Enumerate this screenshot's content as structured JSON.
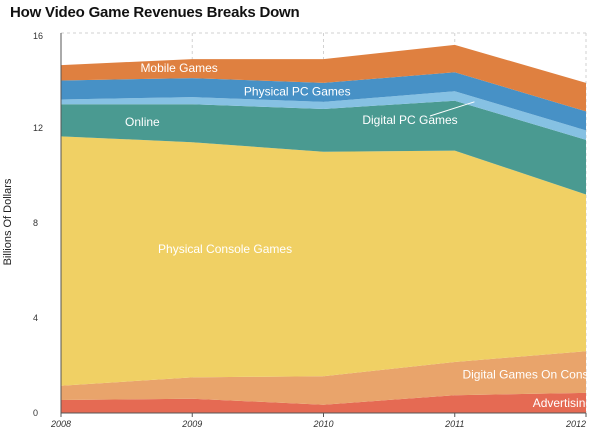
{
  "chart_data": {
    "type": "area",
    "stacked": true,
    "title": "How Video Game Revenues Breaks Down",
    "xlabel": "",
    "ylabel": "Billions Of Dollars",
    "x": [
      "2008",
      "2009",
      "2010",
      "2011",
      "2012"
    ],
    "y_ticks": [
      "0",
      "4",
      "8",
      "12",
      "16"
    ],
    "ylim": [
      0,
      16
    ],
    "grid": "dashed vertical and horizontal",
    "series": [
      {
        "name": "Advertising",
        "values": [
          0.55,
          0.6,
          0.35,
          0.75,
          0.85
        ],
        "color": "#e56a53"
      },
      {
        "name": "Digital Games On Console",
        "values": [
          0.6,
          0.9,
          1.2,
          1.4,
          1.75
        ],
        "color": "#e9a46b"
      },
      {
        "name": "Physical Console Games",
        "values": [
          10.5,
          9.9,
          9.45,
          8.9,
          6.6
        ],
        "color": "#f0d064"
      },
      {
        "name": "Online",
        "values": [
          1.35,
          1.6,
          1.8,
          2.1,
          2.3
        ],
        "color": "#4a9a91"
      },
      {
        "name": "Digital PC Games",
        "values": [
          0.2,
          0.3,
          0.3,
          0.4,
          0.4
        ],
        "color": "#86c1e3"
      },
      {
        "name": "Physical PC Games",
        "values": [
          0.8,
          0.8,
          0.8,
          0.8,
          0.8
        ],
        "color": "#4791c6"
      },
      {
        "name": "Mobile Games",
        "values": [
          0.65,
          0.8,
          1.0,
          1.15,
          1.2
        ],
        "color": "#df8040"
      }
    ]
  }
}
